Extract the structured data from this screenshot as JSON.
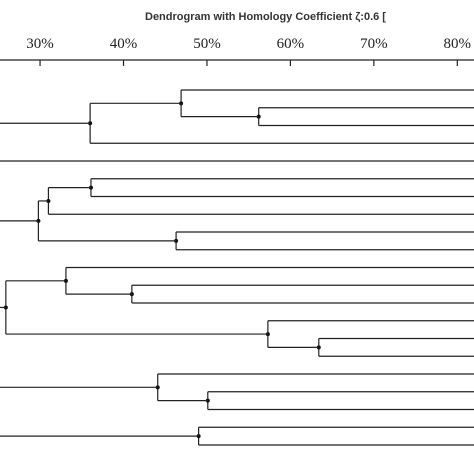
{
  "chart_data": {
    "type": "dendrogram",
    "title": "Dendrogram with Homology Coefficient ζ:0.6 [",
    "xlim": [
      25.2,
      82
    ],
    "xticks": [
      {
        "value": 30,
        "label": "30%"
      },
      {
        "value": 40,
        "label": "40%"
      },
      {
        "value": 50,
        "label": "50%"
      },
      {
        "value": 60,
        "label": "60%"
      },
      {
        "value": 70,
        "label": "70%"
      },
      {
        "value": 80,
        "label": "80%"
      }
    ],
    "tree": [
      {
        "height": 36.0,
        "children": [
          {
            "height": 46.9,
            "children": [
              null,
              {
                "height": 56.2,
                "children": [
                  null,
                  null
                ]
              }
            ]
          },
          null
        ]
      },
      null,
      {
        "height": 29.8,
        "children": [
          {
            "height": 31.0,
            "children": [
              {
                "height": 36.1,
                "children": [
                  null,
                  null
                ]
              },
              null
            ]
          },
          {
            "height": 46.3,
            "children": [
              null,
              null
            ]
          }
        ]
      },
      {
        "height": 25.9,
        "children": [
          {
            "height": 33.1,
            "children": [
              null,
              {
                "height": 41.0,
                "children": [
                  null,
                  null
                ]
              }
            ]
          },
          {
            "height": 57.3,
            "children": [
              null,
              {
                "height": 63.4,
                "children": [
                  null,
                  null
                ]
              }
            ]
          }
        ]
      },
      {
        "height": 44.1,
        "children": [
          null,
          {
            "height": 50.1,
            "children": [
              null,
              null
            ]
          }
        ]
      },
      {
        "height": 49.0,
        "children": [
          null,
          null
        ]
      }
    ]
  }
}
